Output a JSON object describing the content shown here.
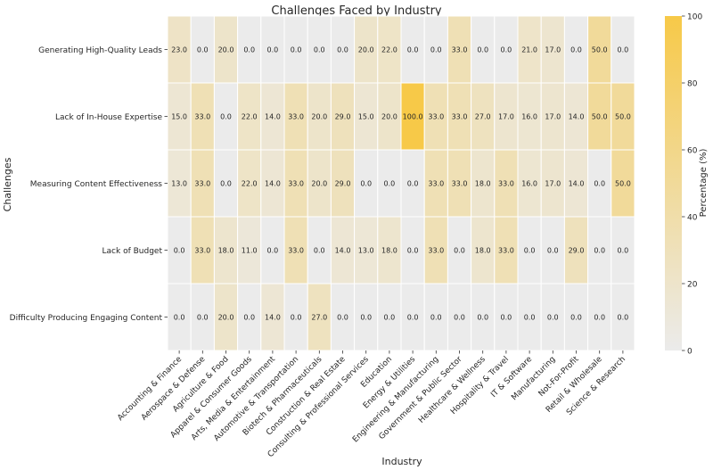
{
  "chart_data": {
    "type": "heatmap",
    "title": "Challenges Faced by Industry",
    "xlabel": "Industry",
    "ylabel": "Challenges",
    "colorbar_label": "Percentage (%)",
    "colorbar_ticks": [
      "0",
      "20",
      "40",
      "60",
      "80",
      "100"
    ],
    "vmin": 0,
    "vmax": 100,
    "color_low": "#ebebeb",
    "color_high": "#f7c948",
    "categories_x": [
      "Accounting & Finance",
      "Aerospace & Defense",
      "Agriculture & Food",
      "Apparel & Consumer Goods",
      "Arts, Media & Entertainment",
      "Automotive & Transportation",
      "Biotech & Pharmaceuticals",
      "Construction & Real Estate",
      "Consulting & Professional Services",
      "Education",
      "Energy & Utilities",
      "Engineering & Manufacturing",
      "Government & Public Sector",
      "Healthcare & Wellness",
      "Hospitality & Travel",
      "IT & Software",
      "Manufacturing",
      "Not-For-Profit",
      "Retail & Wholesale",
      "Science & Research"
    ],
    "categories_y": [
      "Generating High-Quality Leads",
      "Lack of In-House Expertise",
      "Measuring Content Effectiveness",
      "Lack of Budget",
      "Difficulty Producing Engaging Content"
    ],
    "values": [
      [
        23.0,
        0.0,
        20.0,
        0.0,
        0.0,
        0.0,
        0.0,
        0.0,
        20.0,
        22.0,
        0.0,
        0.0,
        33.0,
        0.0,
        0.0,
        21.0,
        17.0,
        0.0,
        50.0,
        0.0
      ],
      [
        15.0,
        33.0,
        0.0,
        22.0,
        14.0,
        33.0,
        20.0,
        29.0,
        15.0,
        20.0,
        100.0,
        33.0,
        33.0,
        27.0,
        17.0,
        16.0,
        17.0,
        14.0,
        50.0,
        50.0
      ],
      [
        13.0,
        33.0,
        0.0,
        22.0,
        14.0,
        33.0,
        20.0,
        29.0,
        0.0,
        0.0,
        0.0,
        33.0,
        33.0,
        18.0,
        33.0,
        16.0,
        17.0,
        14.0,
        0.0,
        50.0
      ],
      [
        0.0,
        33.0,
        18.0,
        11.0,
        0.0,
        33.0,
        0.0,
        14.0,
        13.0,
        18.0,
        0.0,
        33.0,
        0.0,
        18.0,
        33.0,
        0.0,
        0.0,
        29.0,
        0.0,
        0.0
      ],
      [
        0.0,
        0.0,
        20.0,
        0.0,
        14.0,
        0.0,
        27.0,
        0.0,
        0.0,
        0.0,
        0.0,
        0.0,
        0.0,
        0.0,
        0.0,
        0.0,
        0.0,
        0.0,
        0.0,
        0.0
      ]
    ]
  }
}
